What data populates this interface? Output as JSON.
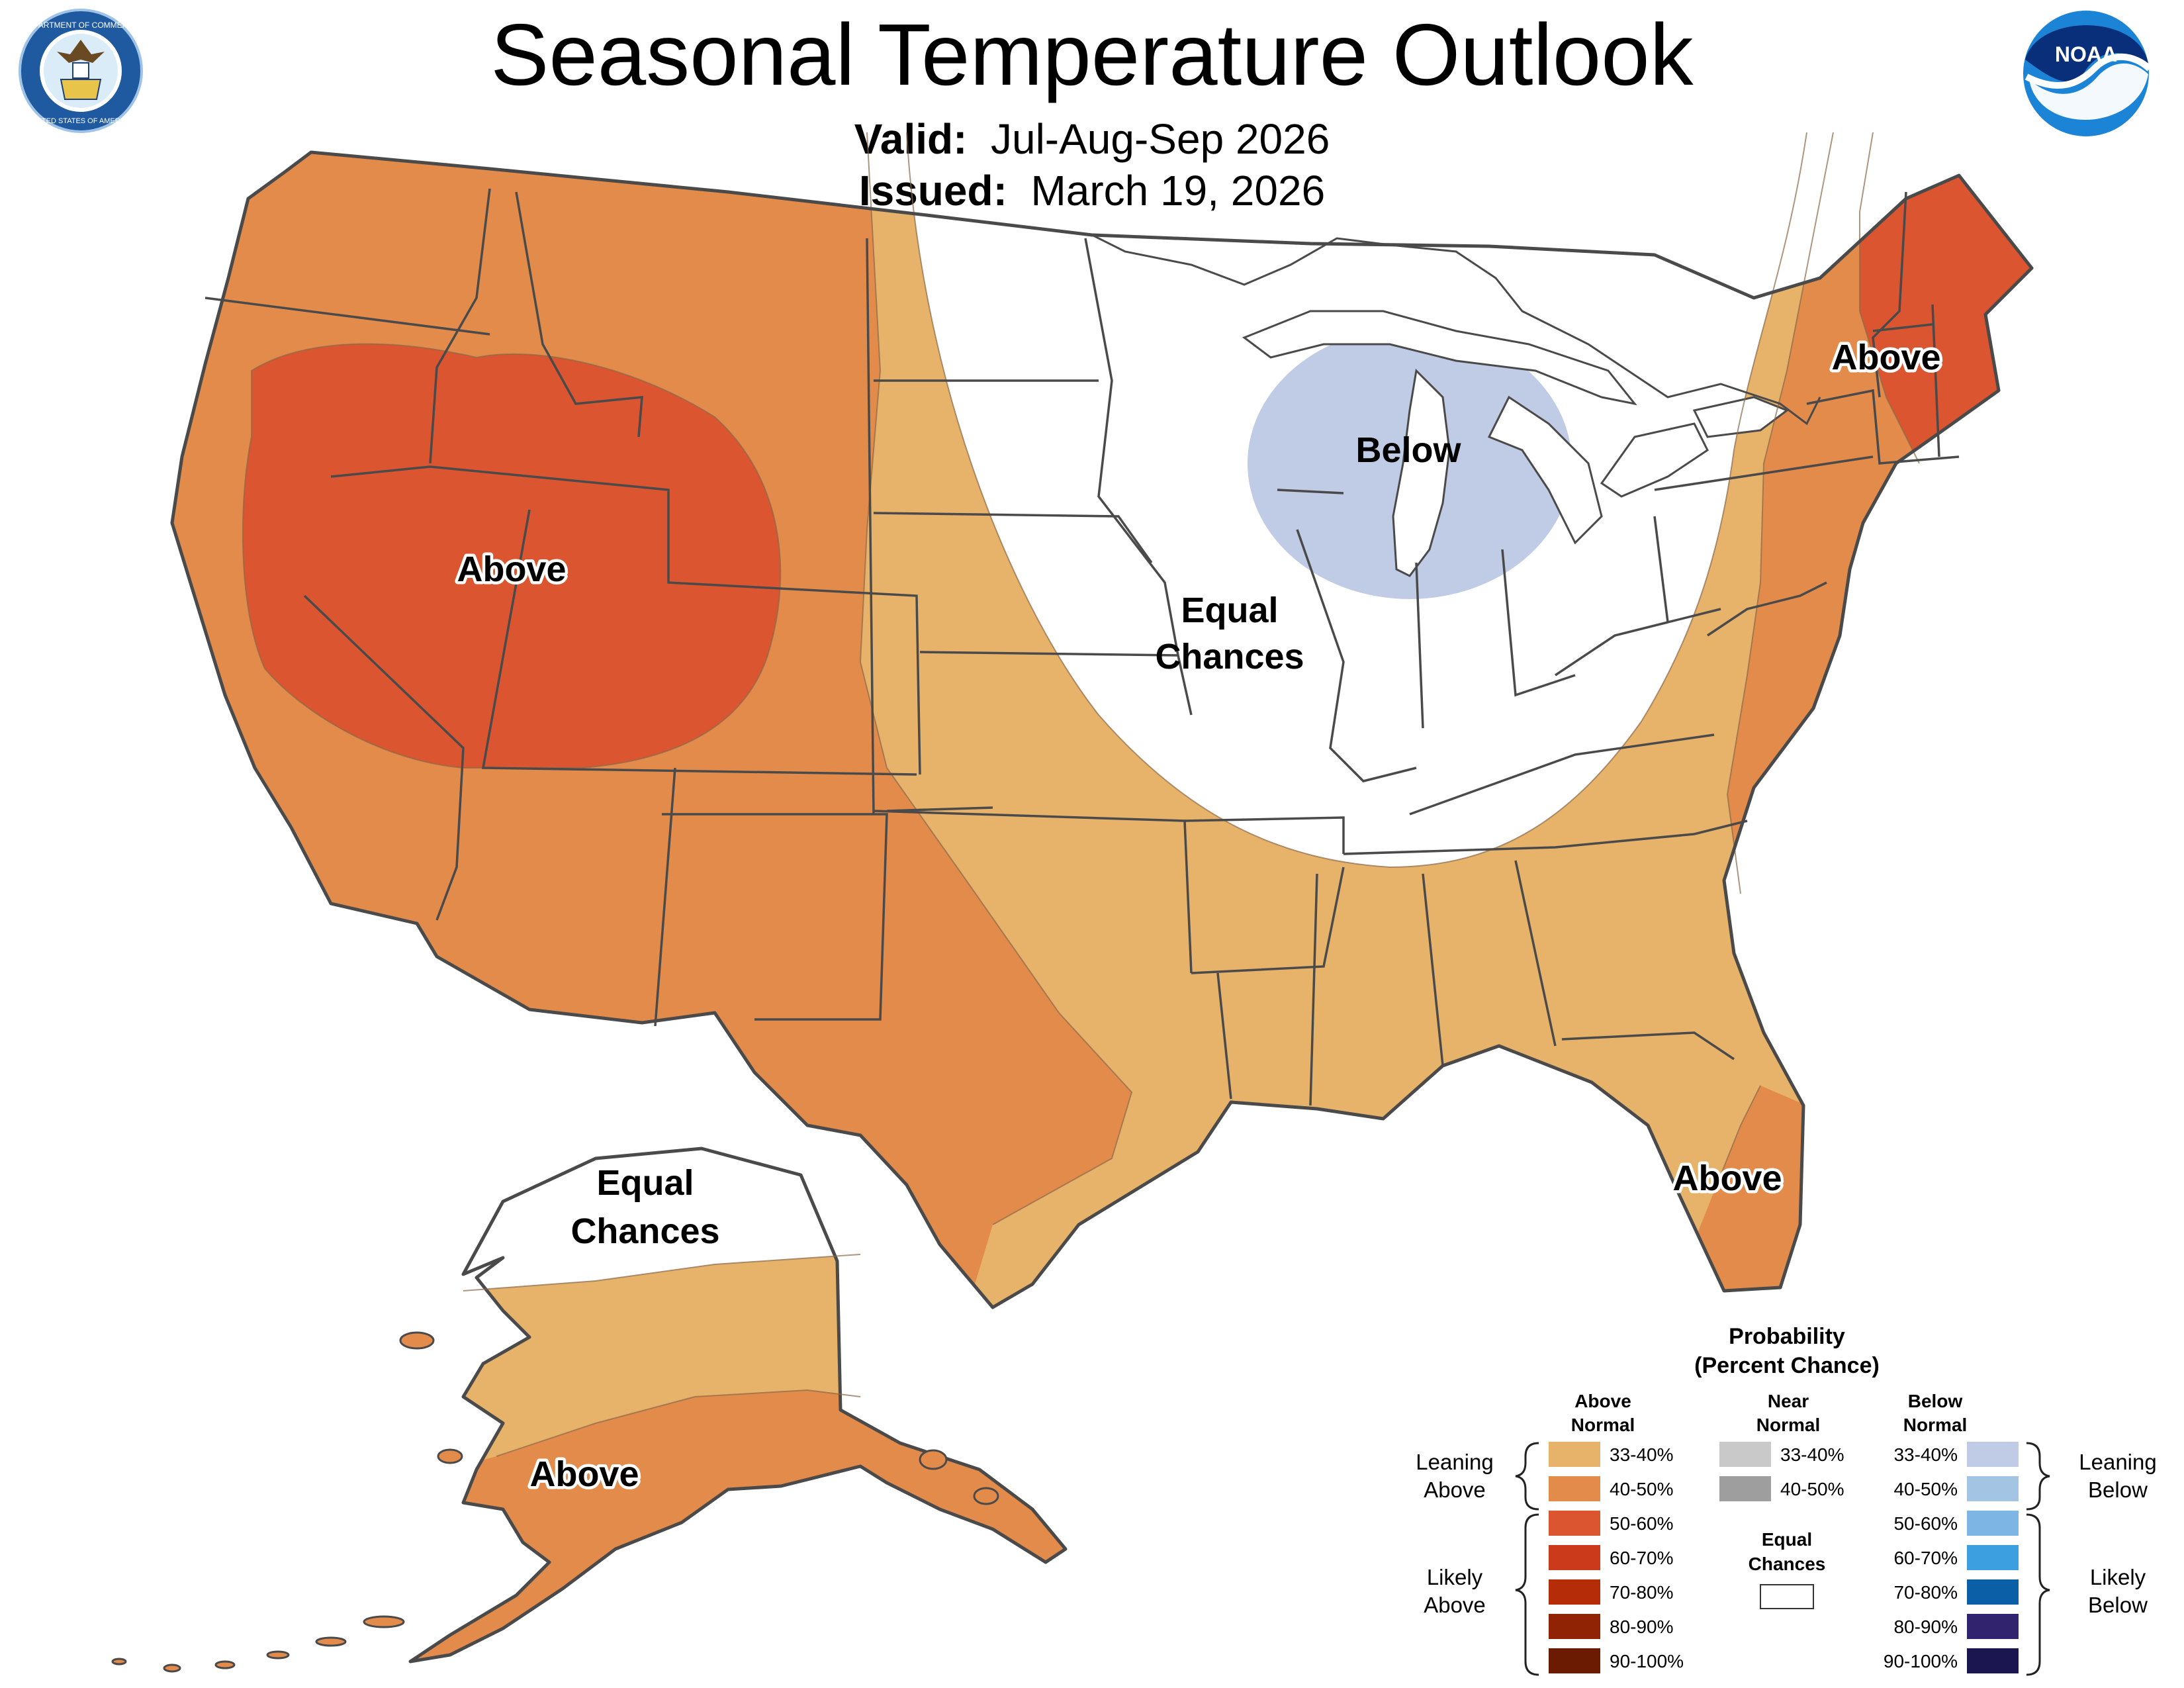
{
  "header": {
    "title": "Seasonal Temperature Outlook",
    "valid_label": "Valid:",
    "valid_value": "Jul-Aug-Sep 2026",
    "issued_label": "Issued:",
    "issued_value": "March 19, 2026"
  },
  "logos": {
    "left": {
      "icon": "department-of-commerce-seal",
      "text_top": "DEPARTMENT OF COMMERCE",
      "text_bottom": "UNITED STATES OF AMERICA"
    },
    "right": {
      "icon": "noaa-logo",
      "text": "NOAA"
    }
  },
  "map_labels": {
    "west_above": "Above",
    "northeast_above": "Above",
    "florida_above": "Above",
    "great_lakes_below": "Below",
    "central_equal_1": "Equal",
    "central_equal_2": "Chances",
    "alaska_equal_1": "Equal",
    "alaska_equal_2": "Chances",
    "alaska_above": "Above"
  },
  "colors": {
    "above_33_40": "#e7b26a",
    "above_40_50": "#e38b4a",
    "above_50_60": "#db5530",
    "above_60_70": "#cc3a1c",
    "above_70_80": "#b52d08",
    "above_80_90": "#8f2303",
    "above_90_100": "#6b1b02",
    "near_33_40": "#c9c9c9",
    "near_40_50": "#9e9e9e",
    "below_33_40": "#c0cbe5",
    "below_40_50": "#a3c4e3",
    "below_50_60": "#7db6e4",
    "below_60_70": "#3c9fe0",
    "below_70_80": "#0a5fa6",
    "below_80_90": "#32236f",
    "below_90_100": "#1c1650",
    "outline": "#4a4a4a"
  },
  "legend": {
    "title_1": "Probability",
    "title_2": "(Percent Chance)",
    "above_header_1": "Above",
    "above_header_2": "Normal",
    "near_header_1": "Near",
    "near_header_2": "Normal",
    "below_header_1": "Below",
    "below_header_2": "Normal",
    "leaning_above_1": "Leaning",
    "leaning_above_2": "Above",
    "likely_above_1": "Likely",
    "likely_above_2": "Above",
    "leaning_below_1": "Leaning",
    "leaning_below_2": "Below",
    "likely_below_1": "Likely",
    "likely_below_2": "Below",
    "equal_1": "Equal",
    "equal_2": "Chances",
    "above_ranges": [
      "33-40%",
      "40-50%",
      "50-60%",
      "60-70%",
      "70-80%",
      "80-90%",
      "90-100%"
    ],
    "near_ranges": [
      "33-40%",
      "40-50%"
    ],
    "below_ranges": [
      "33-40%",
      "40-50%",
      "50-60%",
      "60-70%",
      "70-80%",
      "80-90%",
      "90-100%"
    ]
  }
}
